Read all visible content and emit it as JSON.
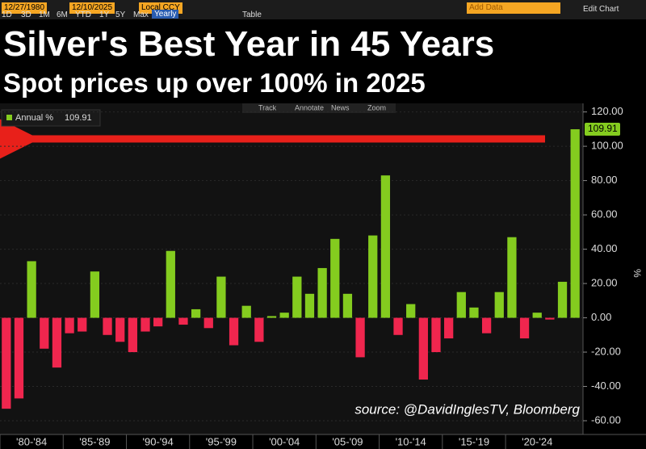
{
  "toolbar": {
    "start_date": "12/27/1980",
    "end_date": "12/10/2025",
    "currency": "Local CCY",
    "ranges": [
      "1D",
      "3D",
      "1M",
      "6M",
      "YTD",
      "1Y",
      "5Y",
      "Max"
    ],
    "period": "Yearly",
    "table": "Table",
    "add_data": "Add Data",
    "edit_chart": "Edit Chart"
  },
  "chart_tools": [
    "Track",
    "Annotate",
    "News",
    "Zoom"
  ],
  "chart_data": {
    "type": "bar",
    "title": "Silver's Best Year in 45 Years",
    "subtitle": "Spot prices up over 100% in 2025",
    "y_axis_label": "%",
    "source": "source: @DavidInglesTV, Bloomberg",
    "categories": [
      "'80-'84",
      null,
      null,
      null,
      null,
      "'85-'89",
      null,
      null,
      null,
      null,
      "'90-'94",
      null,
      null,
      null,
      null,
      "'95-'99",
      null,
      null,
      null,
      null,
      "'00-'04",
      null,
      null,
      null,
      null,
      "'05-'09",
      null,
      null,
      null,
      null,
      "'10-'14",
      null,
      null,
      null,
      null,
      "'15-'19",
      null,
      null,
      null,
      null,
      "'20-'24",
      null,
      null,
      null,
      null,
      null
    ],
    "series": [
      {
        "name": "Annual %",
        "positive_color": "#84cc1f",
        "negative_color": "#f0264e",
        "values": [
          -53,
          -47,
          33,
          -18,
          -29,
          -9,
          -8,
          27,
          -10,
          -14,
          -20,
          -8,
          -5,
          39,
          -4,
          5,
          -6,
          24,
          -16,
          7,
          -14,
          1,
          3,
          24,
          14,
          29,
          46,
          14,
          -23,
          48,
          83,
          -10,
          8,
          -36,
          -20,
          -12,
          15,
          6,
          -9,
          15,
          47,
          -12,
          3,
          -1,
          21,
          109.91
        ]
      }
    ],
    "ylim": [
      -68,
      125
    ],
    "yticks": [
      {
        "value": -60,
        "label": "-60.00"
      },
      {
        "value": -40,
        "label": "-40.00"
      },
      {
        "value": -20,
        "label": "-20.00"
      },
      {
        "value": 0,
        "label": "0.00"
      },
      {
        "value": 20,
        "label": "20.00"
      },
      {
        "value": 40,
        "label": "40.00"
      },
      {
        "value": 60,
        "label": "60.00"
      },
      {
        "value": 80,
        "label": "80.00"
      },
      {
        "value": 100,
        "label": "100.00"
      },
      {
        "value": 120,
        "label": "120.00"
      }
    ],
    "grid": true
  }
}
